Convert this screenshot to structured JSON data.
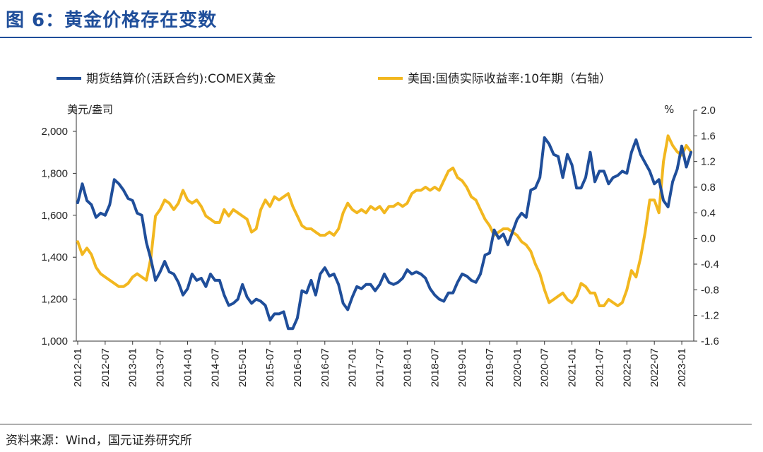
{
  "header": {
    "title": "图 6：黄金价格存在变数"
  },
  "footer": {
    "source": "资料来源：Wind，国元证券研究所"
  },
  "colors": {
    "title": "#1f4e9a",
    "gold_series": "#1f4e9a",
    "yield_series": "#f2b71f"
  },
  "chart_data": {
    "type": "line",
    "title": "",
    "left_axis_unit": "美元/盎司",
    "right_axis_unit": "%",
    "ylim_left": [
      1000,
      2000
    ],
    "yticks_left": [
      "1,000",
      "1,200",
      "1,400",
      "1,600",
      "1,800",
      "2,000"
    ],
    "ylim_right": [
      -1.6,
      2.0
    ],
    "yticks_right": [
      "-1.6",
      "-1.2",
      "-0.8",
      "-0.4",
      "0.0",
      "0.4",
      "0.8",
      "1.2",
      "1.6",
      "2.0"
    ],
    "x_range": [
      "2012-01",
      "2023-03"
    ],
    "x_ticks": [
      "2012-01",
      "2012-07",
      "2013-01",
      "2013-07",
      "2014-01",
      "2014-07",
      "2015-01",
      "2015-07",
      "2016-01",
      "2016-07",
      "2017-01",
      "2017-07",
      "2018-01",
      "2018-07",
      "2019-01",
      "2019-07",
      "2020-01",
      "2020-07",
      "2021-01",
      "2021-07",
      "2022-01",
      "2022-07",
      "2023-01"
    ],
    "grid": false,
    "legend_position": "top",
    "series": [
      {
        "name": "期货结算价(活跃合约):COMEX黄金",
        "axis": "left",
        "points": [
          [
            "2012-01",
            1660
          ],
          [
            "2012-02",
            1750
          ],
          [
            "2012-03",
            1670
          ],
          [
            "2012-04",
            1650
          ],
          [
            "2012-05",
            1590
          ],
          [
            "2012-06",
            1610
          ],
          [
            "2012-07",
            1600
          ],
          [
            "2012-08",
            1650
          ],
          [
            "2012-09",
            1770
          ],
          [
            "2012-10",
            1750
          ],
          [
            "2012-11",
            1720
          ],
          [
            "2012-12",
            1680
          ],
          [
            "2013-01",
            1670
          ],
          [
            "2013-02",
            1610
          ],
          [
            "2013-03",
            1600
          ],
          [
            "2013-04",
            1470
          ],
          [
            "2013-05",
            1390
          ],
          [
            "2013-06",
            1290
          ],
          [
            "2013-07",
            1330
          ],
          [
            "2013-08",
            1380
          ],
          [
            "2013-09",
            1330
          ],
          [
            "2013-10",
            1320
          ],
          [
            "2013-11",
            1280
          ],
          [
            "2013-12",
            1220
          ],
          [
            "2014-01",
            1250
          ],
          [
            "2014-02",
            1320
          ],
          [
            "2014-03",
            1290
          ],
          [
            "2014-04",
            1300
          ],
          [
            "2014-05",
            1260
          ],
          [
            "2014-06",
            1320
          ],
          [
            "2014-07",
            1290
          ],
          [
            "2014-08",
            1290
          ],
          [
            "2014-09",
            1220
          ],
          [
            "2014-10",
            1170
          ],
          [
            "2014-11",
            1180
          ],
          [
            "2014-12",
            1200
          ],
          [
            "2015-01",
            1270
          ],
          [
            "2015-02",
            1210
          ],
          [
            "2015-03",
            1180
          ],
          [
            "2015-04",
            1200
          ],
          [
            "2015-05",
            1190
          ],
          [
            "2015-06",
            1170
          ],
          [
            "2015-07",
            1100
          ],
          [
            "2015-08",
            1130
          ],
          [
            "2015-09",
            1130
          ],
          [
            "2015-10",
            1140
          ],
          [
            "2015-11",
            1060
          ],
          [
            "2015-12",
            1060
          ],
          [
            "2016-01",
            1110
          ],
          [
            "2016-02",
            1240
          ],
          [
            "2016-03",
            1230
          ],
          [
            "2016-04",
            1290
          ],
          [
            "2016-05",
            1220
          ],
          [
            "2016-06",
            1320
          ],
          [
            "2016-07",
            1350
          ],
          [
            "2016-08",
            1310
          ],
          [
            "2016-09",
            1320
          ],
          [
            "2016-10",
            1270
          ],
          [
            "2016-11",
            1180
          ],
          [
            "2016-12",
            1150
          ],
          [
            "2017-01",
            1210
          ],
          [
            "2017-02",
            1260
          ],
          [
            "2017-03",
            1250
          ],
          [
            "2017-04",
            1270
          ],
          [
            "2017-05",
            1270
          ],
          [
            "2017-06",
            1240
          ],
          [
            "2017-07",
            1270
          ],
          [
            "2017-08",
            1320
          ],
          [
            "2017-09",
            1280
          ],
          [
            "2017-10",
            1270
          ],
          [
            "2017-11",
            1280
          ],
          [
            "2017-12",
            1300
          ],
          [
            "2018-01",
            1340
          ],
          [
            "2018-02",
            1320
          ],
          [
            "2018-03",
            1330
          ],
          [
            "2018-04",
            1320
          ],
          [
            "2018-05",
            1300
          ],
          [
            "2018-06",
            1250
          ],
          [
            "2018-07",
            1220
          ],
          [
            "2018-08",
            1200
          ],
          [
            "2018-09",
            1190
          ],
          [
            "2018-10",
            1230
          ],
          [
            "2018-11",
            1230
          ],
          [
            "2018-12",
            1280
          ],
          [
            "2019-01",
            1320
          ],
          [
            "2019-02",
            1310
          ],
          [
            "2019-03",
            1290
          ],
          [
            "2019-04",
            1280
          ],
          [
            "2019-05",
            1320
          ],
          [
            "2019-06",
            1410
          ],
          [
            "2019-07",
            1420
          ],
          [
            "2019-08",
            1530
          ],
          [
            "2019-09",
            1490
          ],
          [
            "2019-10",
            1510
          ],
          [
            "2019-11",
            1460
          ],
          [
            "2019-12",
            1520
          ],
          [
            "2020-01",
            1580
          ],
          [
            "2020-02",
            1610
          ],
          [
            "2020-03",
            1590
          ],
          [
            "2020-04",
            1720
          ],
          [
            "2020-05",
            1730
          ],
          [
            "2020-06",
            1780
          ],
          [
            "2020-07",
            1970
          ],
          [
            "2020-08",
            1940
          ],
          [
            "2020-09",
            1890
          ],
          [
            "2020-10",
            1880
          ],
          [
            "2020-11",
            1780
          ],
          [
            "2020-12",
            1890
          ],
          [
            "2021-01",
            1840
          ],
          [
            "2021-02",
            1730
          ],
          [
            "2021-03",
            1730
          ],
          [
            "2021-04",
            1780
          ],
          [
            "2021-05",
            1900
          ],
          [
            "2021-06",
            1760
          ],
          [
            "2021-07",
            1810
          ],
          [
            "2021-08",
            1810
          ],
          [
            "2021-09",
            1750
          ],
          [
            "2021-10",
            1780
          ],
          [
            "2021-11",
            1790
          ],
          [
            "2021-12",
            1810
          ],
          [
            "2022-01",
            1800
          ],
          [
            "2022-02",
            1900
          ],
          [
            "2022-03",
            1960
          ],
          [
            "2022-04",
            1890
          ],
          [
            "2022-05",
            1850
          ],
          [
            "2022-06",
            1810
          ],
          [
            "2022-07",
            1750
          ],
          [
            "2022-08",
            1770
          ],
          [
            "2022-09",
            1670
          ],
          [
            "2022-10",
            1640
          ],
          [
            "2022-11",
            1760
          ],
          [
            "2022-12",
            1820
          ],
          [
            "2023-01",
            1930
          ],
          [
            "2023-02",
            1830
          ],
          [
            "2023-03",
            1900
          ]
        ]
      },
      {
        "name": "美国:国债实际收益率:10年期（右轴）",
        "axis": "right",
        "points": [
          [
            "2012-01",
            -0.05
          ],
          [
            "2012-02",
            -0.25
          ],
          [
            "2012-03",
            -0.15
          ],
          [
            "2012-04",
            -0.25
          ],
          [
            "2012-05",
            -0.45
          ],
          [
            "2012-06",
            -0.55
          ],
          [
            "2012-07",
            -0.6
          ],
          [
            "2012-08",
            -0.65
          ],
          [
            "2012-09",
            -0.7
          ],
          [
            "2012-10",
            -0.75
          ],
          [
            "2012-11",
            -0.75
          ],
          [
            "2012-12",
            -0.7
          ],
          [
            "2013-01",
            -0.6
          ],
          [
            "2013-02",
            -0.55
          ],
          [
            "2013-03",
            -0.6
          ],
          [
            "2013-04",
            -0.65
          ],
          [
            "2013-05",
            -0.3
          ],
          [
            "2013-06",
            0.35
          ],
          [
            "2013-07",
            0.45
          ],
          [
            "2013-08",
            0.6
          ],
          [
            "2013-09",
            0.55
          ],
          [
            "2013-10",
            0.45
          ],
          [
            "2013-11",
            0.55
          ],
          [
            "2013-12",
            0.75
          ],
          [
            "2014-01",
            0.6
          ],
          [
            "2014-02",
            0.55
          ],
          [
            "2014-03",
            0.6
          ],
          [
            "2014-04",
            0.5
          ],
          [
            "2014-05",
            0.35
          ],
          [
            "2014-06",
            0.3
          ],
          [
            "2014-07",
            0.25
          ],
          [
            "2014-08",
            0.25
          ],
          [
            "2014-09",
            0.45
          ],
          [
            "2014-10",
            0.35
          ],
          [
            "2014-11",
            0.45
          ],
          [
            "2014-12",
            0.4
          ],
          [
            "2015-01",
            0.35
          ],
          [
            "2015-02",
            0.3
          ],
          [
            "2015-03",
            0.1
          ],
          [
            "2015-04",
            0.15
          ],
          [
            "2015-05",
            0.45
          ],
          [
            "2015-06",
            0.6
          ],
          [
            "2015-07",
            0.5
          ],
          [
            "2015-08",
            0.65
          ],
          [
            "2015-09",
            0.6
          ],
          [
            "2015-10",
            0.65
          ],
          [
            "2015-11",
            0.7
          ],
          [
            "2015-12",
            0.5
          ],
          [
            "2016-01",
            0.35
          ],
          [
            "2016-02",
            0.2
          ],
          [
            "2016-03",
            0.15
          ],
          [
            "2016-04",
            0.15
          ],
          [
            "2016-05",
            0.1
          ],
          [
            "2016-06",
            0.05
          ],
          [
            "2016-07",
            0.05
          ],
          [
            "2016-08",
            0.1
          ],
          [
            "2016-09",
            0.05
          ],
          [
            "2016-10",
            0.15
          ],
          [
            "2016-11",
            0.4
          ],
          [
            "2016-12",
            0.55
          ],
          [
            "2017-01",
            0.45
          ],
          [
            "2017-02",
            0.4
          ],
          [
            "2017-03",
            0.45
          ],
          [
            "2017-04",
            0.4
          ],
          [
            "2017-05",
            0.5
          ],
          [
            "2017-06",
            0.45
          ],
          [
            "2017-07",
            0.5
          ],
          [
            "2017-08",
            0.4
          ],
          [
            "2017-09",
            0.5
          ],
          [
            "2017-10",
            0.5
          ],
          [
            "2017-11",
            0.55
          ],
          [
            "2017-12",
            0.5
          ],
          [
            "2018-01",
            0.55
          ],
          [
            "2018-02",
            0.7
          ],
          [
            "2018-03",
            0.75
          ],
          [
            "2018-04",
            0.75
          ],
          [
            "2018-05",
            0.8
          ],
          [
            "2018-06",
            0.75
          ],
          [
            "2018-07",
            0.8
          ],
          [
            "2018-08",
            0.75
          ],
          [
            "2018-09",
            0.9
          ],
          [
            "2018-10",
            1.05
          ],
          [
            "2018-11",
            1.1
          ],
          [
            "2018-12",
            0.95
          ],
          [
            "2019-01",
            0.9
          ],
          [
            "2019-02",
            0.8
          ],
          [
            "2019-03",
            0.65
          ],
          [
            "2019-04",
            0.6
          ],
          [
            "2019-05",
            0.45
          ],
          [
            "2019-06",
            0.3
          ],
          [
            "2019-07",
            0.2
          ],
          [
            "2019-08",
            0.05
          ],
          [
            "2019-09",
            0.1
          ],
          [
            "2019-10",
            0.15
          ],
          [
            "2019-11",
            0.15
          ],
          [
            "2019-12",
            0.1
          ],
          [
            "2020-01",
            0.05
          ],
          [
            "2020-02",
            -0.05
          ],
          [
            "2020-03",
            -0.1
          ],
          [
            "2020-04",
            -0.2
          ],
          [
            "2020-05",
            -0.4
          ],
          [
            "2020-06",
            -0.55
          ],
          [
            "2020-07",
            -0.8
          ],
          [
            "2020-08",
            -1.0
          ],
          [
            "2020-09",
            -0.95
          ],
          [
            "2020-10",
            -0.9
          ],
          [
            "2020-11",
            -0.85
          ],
          [
            "2020-12",
            -0.95
          ],
          [
            "2021-01",
            -1.0
          ],
          [
            "2021-02",
            -0.9
          ],
          [
            "2021-03",
            -0.7
          ],
          [
            "2021-04",
            -0.75
          ],
          [
            "2021-05",
            -0.85
          ],
          [
            "2021-06",
            -0.85
          ],
          [
            "2021-07",
            -1.05
          ],
          [
            "2021-08",
            -1.05
          ],
          [
            "2021-09",
            -0.95
          ],
          [
            "2021-10",
            -1.0
          ],
          [
            "2021-11",
            -1.05
          ],
          [
            "2021-12",
            -1.0
          ],
          [
            "2022-01",
            -0.8
          ],
          [
            "2022-02",
            -0.5
          ],
          [
            "2022-03",
            -0.6
          ],
          [
            "2022-04",
            -0.3
          ],
          [
            "2022-05",
            0.1
          ],
          [
            "2022-06",
            0.6
          ],
          [
            "2022-07",
            0.6
          ],
          [
            "2022-08",
            0.4
          ],
          [
            "2022-09",
            1.2
          ],
          [
            "2022-10",
            1.6
          ],
          [
            "2022-11",
            1.45
          ],
          [
            "2022-12",
            1.35
          ],
          [
            "2023-01",
            1.3
          ],
          [
            "2023-02",
            1.45
          ],
          [
            "2023-03",
            1.35
          ]
        ]
      }
    ]
  }
}
